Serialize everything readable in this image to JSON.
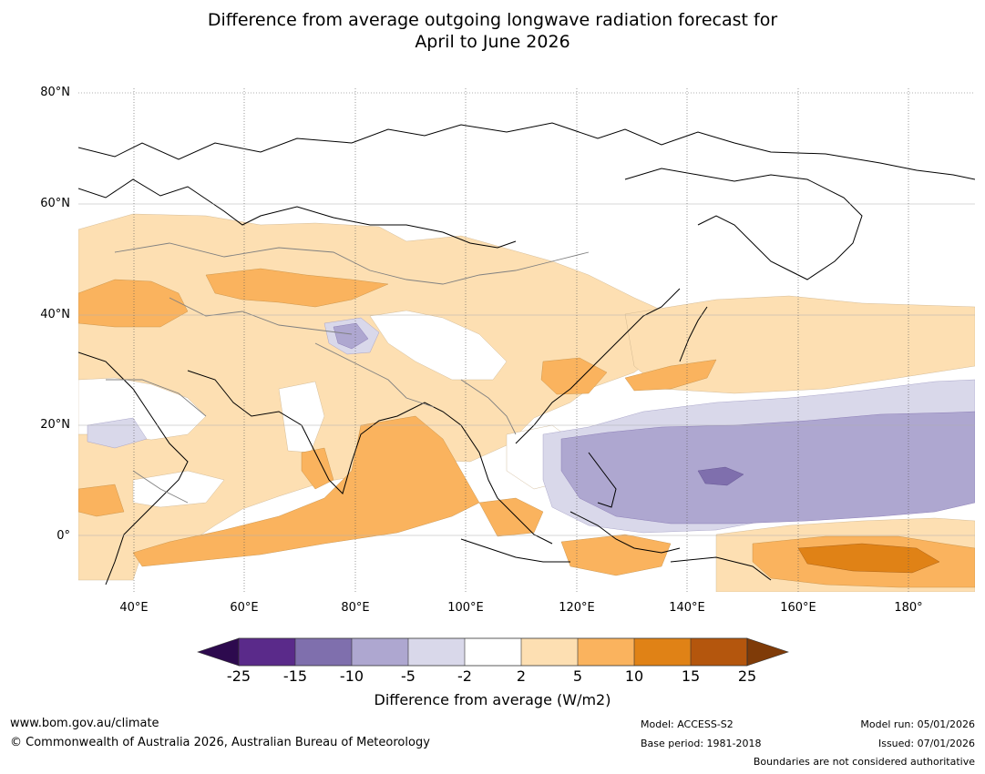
{
  "title_line1": "Difference from average outgoing longwave radiation forecast for",
  "title_line2": "April to June 2026",
  "lat_labels": [
    "80°N",
    "60°N",
    "40°N",
    "20°N",
    "0°"
  ],
  "lon_labels": [
    "40°E",
    "60°E",
    "80°E",
    "100°E",
    "120°E",
    "140°E",
    "160°E",
    "180°"
  ],
  "colorbar": {
    "ticks": [
      "-25",
      "-15",
      "-10",
      "-5",
      "-2",
      "2",
      "5",
      "10",
      "15",
      "25"
    ],
    "label": "Difference from average (W/m2)",
    "colors": {
      "under": "#2d0a4e",
      "c1": "#5a2a8a",
      "c2": "#7f6fad",
      "c3": "#aea7d0",
      "c4": "#d9d8ea",
      "c5": "#ffffff",
      "c6": "#fddfb2",
      "c7": "#fab35e",
      "c8": "#e08216",
      "c9": "#b4560d",
      "over": "#7f3b08"
    }
  },
  "footer": {
    "url": "www.bom.gov.au/climate",
    "copyright": "© Commonwealth of Australia 2026, Australian Bureau of Meteorology",
    "model": "Model: ACCESS-S2",
    "base_period": "Base period: 1981-2018",
    "model_run": "Model run: 05/01/2026",
    "issued": "Issued: 07/01/2026",
    "boundaries": "Boundaries are not considered authoritative"
  }
}
